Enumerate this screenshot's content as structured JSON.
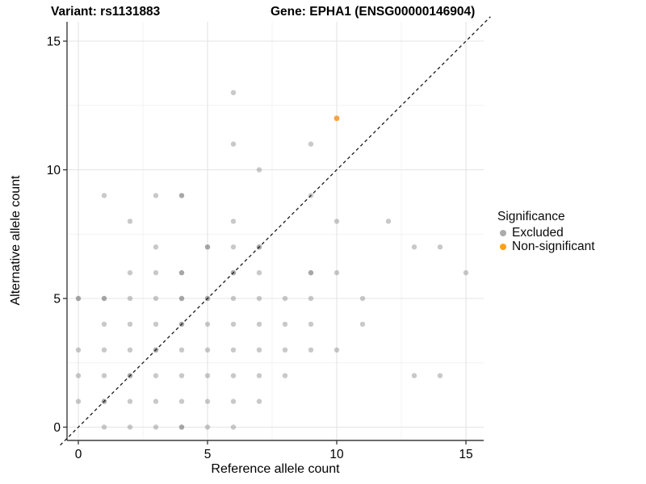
{
  "title": {
    "variant": "Variant: rs1131883",
    "gene": "Gene: EPHA1 (ENSG00000146904)"
  },
  "colors": {
    "background": "#ffffff",
    "grid_major": "#e4e4e4",
    "grid_minor": "#f2f2f2",
    "axis_line": "#3c3c3c",
    "tick_mark": "#333333",
    "identity_line": "#1a1a1a",
    "excluded_point": "#a9a9a9",
    "non_significant_point": "#f9a242",
    "text": "#000000"
  },
  "chart_data": {
    "type": "scatter",
    "title": "Variant: rs1131883          Gene: EPHA1 (ENSG00000146904)",
    "xlabel": "Reference allele count",
    "ylabel": "Alternative allele count",
    "xlim": [
      -0.75,
      15.75
    ],
    "ylim": [
      -0.75,
      15.75
    ],
    "x_ticks": [
      0,
      5,
      10,
      15
    ],
    "y_ticks": [
      0,
      5,
      10,
      15
    ],
    "x_minor_ticks": [
      2.5,
      7.5,
      12.5
    ],
    "y_minor_ticks": [
      2.5,
      7.5,
      12.5
    ],
    "grid": true,
    "identity_line": {
      "style": "dashed",
      "slope": 1,
      "intercept": 0
    },
    "legend": {
      "title": "Significance",
      "position": "right",
      "entries": [
        {
          "label": "Excluded",
          "color": "#ababab"
        },
        {
          "label": "Non-significant",
          "color": "#ffa113"
        }
      ]
    },
    "series": [
      {
        "name": "Excluded",
        "color": "#a9a9a9",
        "points": [
          [
            1,
            0
          ],
          [
            2,
            0
          ],
          [
            3,
            0
          ],
          [
            4,
            0,
            2
          ],
          [
            5,
            0
          ],
          [
            6,
            0
          ],
          [
            0,
            1
          ],
          [
            1,
            1,
            2
          ],
          [
            2,
            1
          ],
          [
            3,
            1
          ],
          [
            4,
            1
          ],
          [
            5,
            1
          ],
          [
            6,
            1
          ],
          [
            7,
            1
          ],
          [
            0,
            2
          ],
          [
            1,
            2
          ],
          [
            2,
            2,
            2
          ],
          [
            3,
            2
          ],
          [
            4,
            2
          ],
          [
            5,
            2
          ],
          [
            6,
            2
          ],
          [
            7,
            2
          ],
          [
            8,
            2
          ],
          [
            13,
            2
          ],
          [
            14,
            2
          ],
          [
            0,
            3
          ],
          [
            1,
            3
          ],
          [
            2,
            3
          ],
          [
            3,
            3,
            2
          ],
          [
            4,
            3
          ],
          [
            5,
            3
          ],
          [
            6,
            3
          ],
          [
            7,
            3
          ],
          [
            8,
            3
          ],
          [
            9,
            3
          ],
          [
            10,
            3
          ],
          [
            1,
            4
          ],
          [
            2,
            4
          ],
          [
            3,
            4
          ],
          [
            4,
            4,
            2
          ],
          [
            5,
            4
          ],
          [
            6,
            4
          ],
          [
            7,
            4
          ],
          [
            8,
            4
          ],
          [
            9,
            4
          ],
          [
            11,
            4
          ],
          [
            0,
            5,
            2
          ],
          [
            1,
            5,
            2
          ],
          [
            2,
            5
          ],
          [
            3,
            5
          ],
          [
            4,
            5,
            2
          ],
          [
            5,
            5,
            2
          ],
          [
            6,
            5
          ],
          [
            7,
            5
          ],
          [
            8,
            5
          ],
          [
            9,
            5
          ],
          [
            11,
            5
          ],
          [
            2,
            6
          ],
          [
            3,
            6
          ],
          [
            4,
            6,
            2
          ],
          [
            6,
            6,
            2
          ],
          [
            7,
            6
          ],
          [
            9,
            6,
            2
          ],
          [
            10,
            6
          ],
          [
            15,
            6
          ],
          [
            3,
            7
          ],
          [
            5,
            7,
            2
          ],
          [
            6,
            7
          ],
          [
            7,
            7,
            2
          ],
          [
            13,
            7
          ],
          [
            14,
            7
          ],
          [
            2,
            8
          ],
          [
            6,
            8
          ],
          [
            10,
            8
          ],
          [
            12,
            8
          ],
          [
            1,
            9
          ],
          [
            3,
            9
          ],
          [
            4,
            9,
            2
          ],
          [
            9,
            9
          ],
          [
            7,
            10
          ],
          [
            6,
            11
          ],
          [
            9,
            11
          ],
          [
            6,
            13
          ]
        ]
      },
      {
        "name": "Non-significant",
        "color": "#f9a242",
        "points": [
          [
            10,
            12
          ]
        ]
      }
    ]
  }
}
